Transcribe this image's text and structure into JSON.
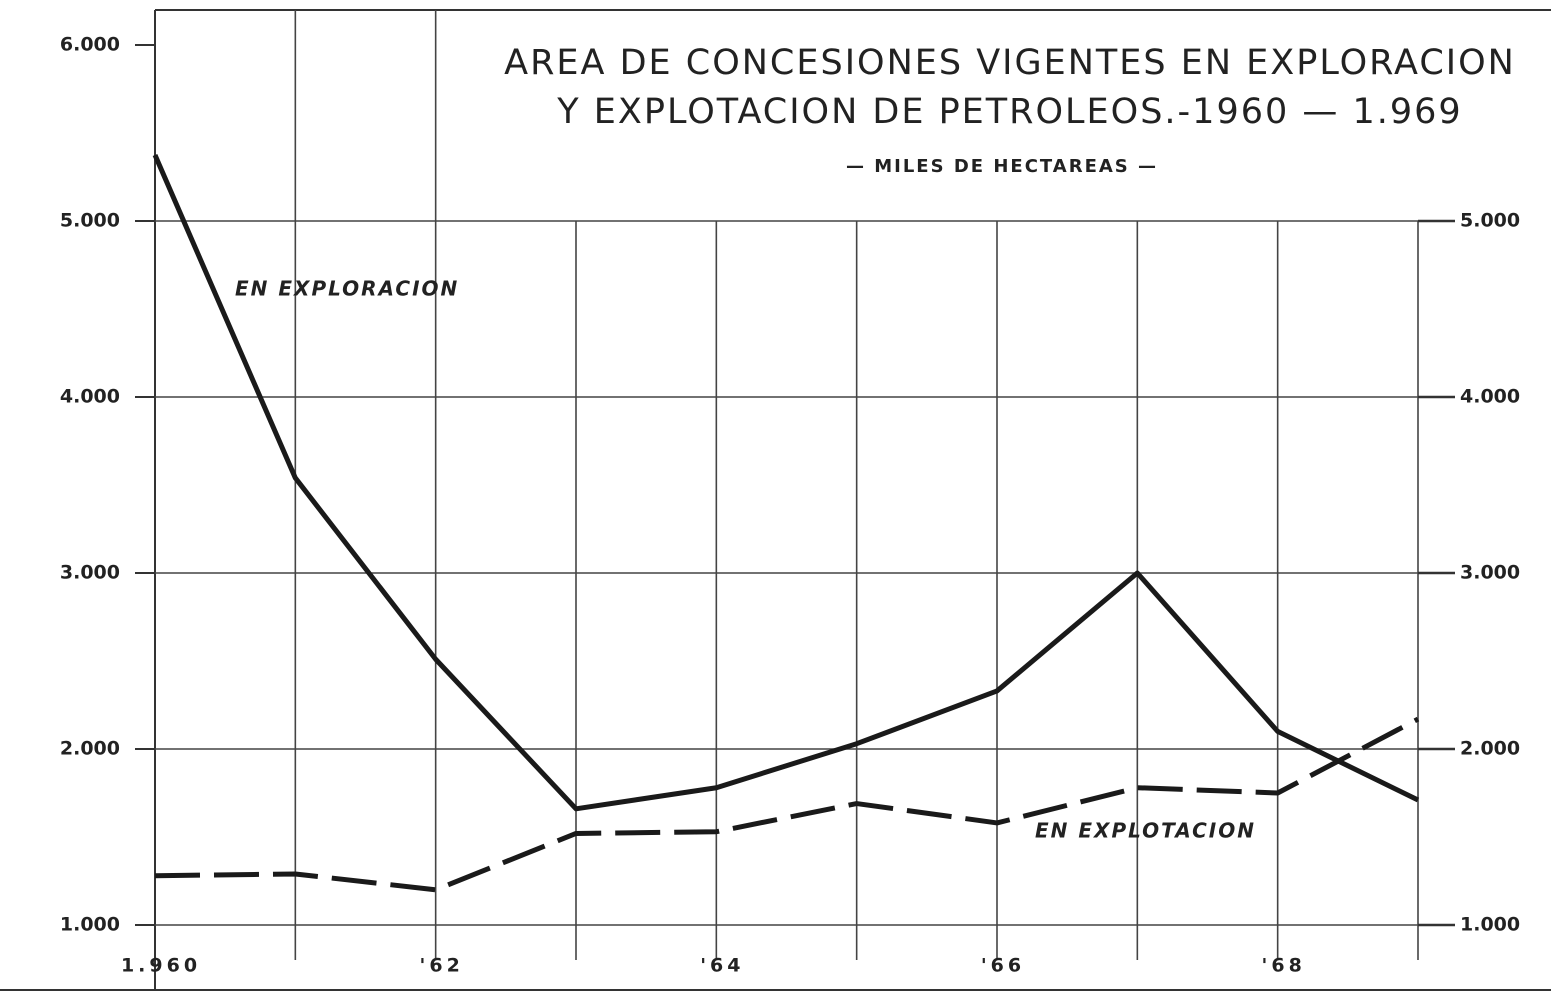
{
  "chart_data": {
    "type": "line",
    "title": [
      "AREA DE CONCESIONES VIGENTES EN EXPLORACION",
      "Y EXPLOTACION DE PETROLEOS.-1960 — 1.969"
    ],
    "subtitle": "— MILES DE HECTAREAS —",
    "x": [
      1960,
      1961,
      1962,
      1963,
      1964,
      1965,
      1966,
      1967,
      1968,
      1969
    ],
    "x_labels": [
      "1.960",
      null,
      "'62",
      null,
      "'64",
      null,
      "'66",
      null,
      "'68",
      null
    ],
    "xlim": [
      1960,
      1969
    ],
    "ylim": [
      1000,
      6000
    ],
    "yticks": [
      {
        "value": 1000,
        "label": "1.000"
      },
      {
        "value": 2000,
        "label": "2.000"
      },
      {
        "value": 3000,
        "label": "3.000"
      },
      {
        "value": 4000,
        "label": "4.000"
      },
      {
        "value": 5000,
        "label": "5.000"
      },
      {
        "value": 6000,
        "label": "6.000"
      }
    ],
    "y2lim": [
      1000,
      6000
    ],
    "y2ticks": [
      {
        "value": 1000,
        "label": "1.000"
      },
      {
        "value": 2000,
        "label": "2.000"
      },
      {
        "value": 3000,
        "label": "3.000"
      },
      {
        "value": 4000,
        "label": "4.000"
      },
      {
        "value": 5000,
        "label": "5.000"
      }
    ],
    "grid": true,
    "series": [
      {
        "name": "EN EXPLORACION",
        "color": "#1a1a1a",
        "dashed": false,
        "values": [
          5375,
          3540,
          2510,
          1660,
          1780,
          2030,
          2330,
          3000,
          2100,
          1710
        ]
      },
      {
        "name": "EN EXPLOTACION",
        "color": "#1a1a1a",
        "dashed": true,
        "values": [
          1280,
          1290,
          1200,
          1520,
          1530,
          1690,
          1580,
          1780,
          1750,
          2170
        ]
      }
    ]
  }
}
